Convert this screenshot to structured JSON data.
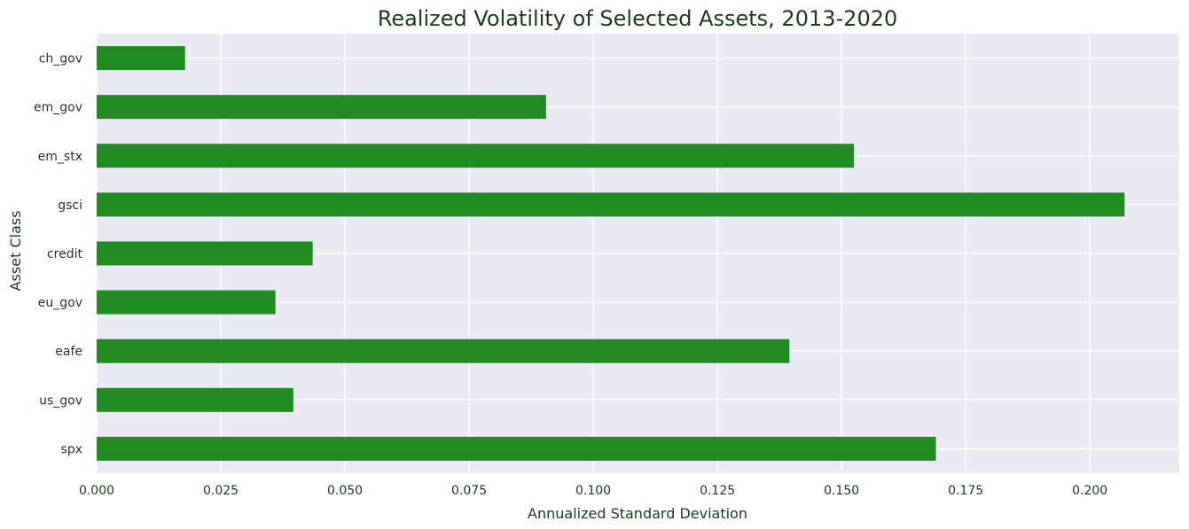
{
  "chart_data": {
    "type": "bar",
    "orientation": "horizontal",
    "title": "Realized Volatility of Selected Assets, 2013-2020",
    "xlabel": "Annualized Standard Deviation",
    "ylabel": "Asset Class",
    "categories": [
      "ch_gov",
      "em_gov",
      "em_stx",
      "gsci",
      "credit",
      "eu_gov",
      "eafe",
      "us_gov",
      "spx"
    ],
    "values": [
      0.0178,
      0.0905,
      0.1525,
      0.207,
      0.0435,
      0.036,
      0.1395,
      0.0396,
      0.169
    ],
    "xlim": [
      0,
      0.218
    ],
    "xticks": [
      0.0,
      0.025,
      0.05,
      0.075,
      0.1,
      0.125,
      0.15,
      0.175,
      0.2
    ],
    "xtick_labels": [
      "0.000",
      "0.025",
      "0.050",
      "0.075",
      "0.100",
      "0.125",
      "0.150",
      "0.175",
      "0.200"
    ],
    "grid": true,
    "bar_color": "#228b22",
    "background_color": "#eaeaf2",
    "grid_color": "#ffffff"
  }
}
